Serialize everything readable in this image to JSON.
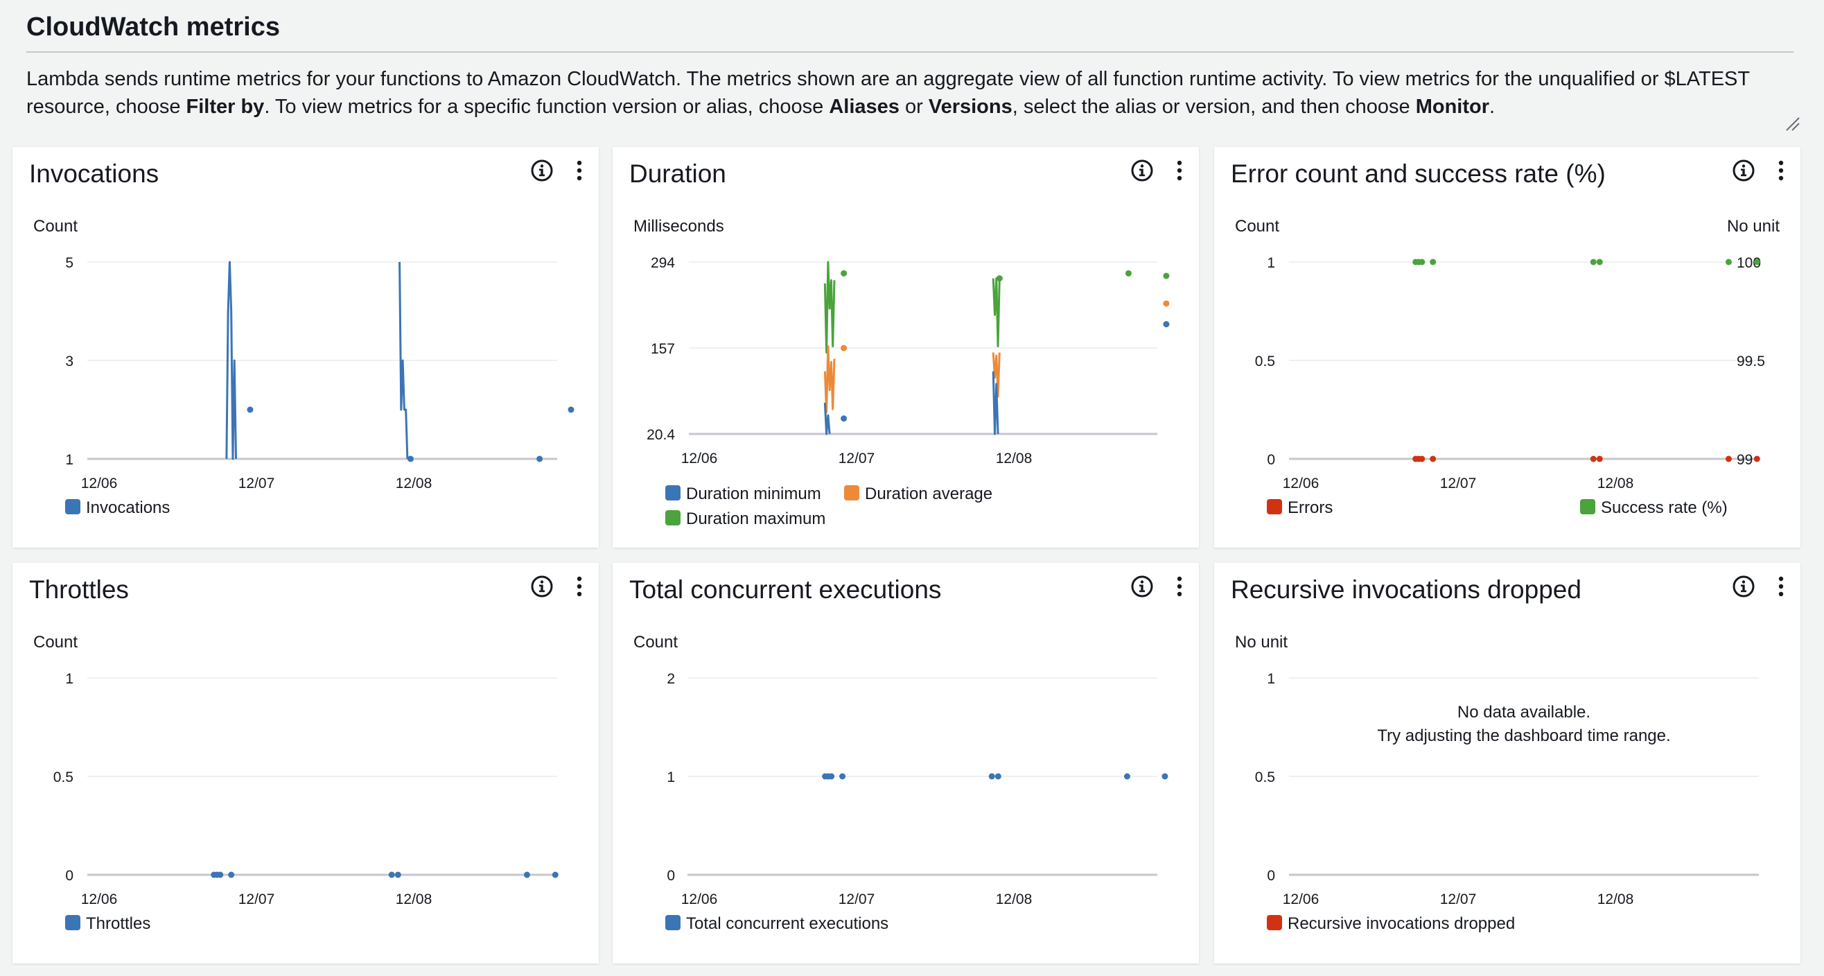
{
  "header": {
    "title": "CloudWatch metrics",
    "description": {
      "t1": "Lambda sends runtime metrics for your functions to Amazon CloudWatch. The metrics shown are an aggregate view of all function runtime activity. To view metrics for the unqualified or $LATEST resource, choose ",
      "b1": "Filter by",
      "t2": ". To view metrics for a specific function version or alias, choose ",
      "b2": "Aliases",
      "t3": " or ",
      "b3": "Versions",
      "t4": ", select the alias or version, and then choose ",
      "b4": "Monitor",
      "t5": "."
    }
  },
  "colors": {
    "blue": "#3a75b6",
    "orange": "#ed8a3a",
    "green": "#4aa33c",
    "red": "#d13212",
    "grid": "#e9ebed",
    "axis": "#c6c6cd"
  },
  "icons": {
    "info": "info-circle-icon",
    "menu": "vertical-ellipsis-icon",
    "resize": "resize-handle-icon"
  },
  "chart_data": [
    {
      "id": "invocations",
      "type": "line",
      "title": "Invocations",
      "ylabel": "Count",
      "x_ticks": [
        "12/06",
        "12/07",
        "12/08"
      ],
      "y_ticks": [
        "5",
        "3",
        "1"
      ],
      "ylim": [
        1,
        5
      ],
      "legend": [
        {
          "name": "Invocations",
          "color": "#3a75b6"
        }
      ],
      "series": [
        {
          "name": "Invocations",
          "color": "#3a75b6",
          "lines": [
            [
              [
                0.81,
                1
              ],
              [
                0.82,
                4
              ],
              [
                0.83,
                5
              ],
              [
                0.84,
                4
              ],
              [
                0.85,
                1
              ],
              [
                0.86,
                3
              ],
              [
                0.87,
                1
              ]
            ],
            [
              [
                1.91,
                5
              ],
              [
                1.92,
                2
              ],
              [
                1.93,
                3
              ],
              [
                1.94,
                2
              ],
              [
                1.95,
                2
              ],
              [
                1.96,
                1
              ]
            ]
          ],
          "points": [
            [
              0.96,
              2
            ],
            [
              1.98,
              1
            ],
            [
              2.8,
              1
            ],
            [
              3.0,
              2
            ]
          ]
        }
      ]
    },
    {
      "id": "duration",
      "type": "line",
      "title": "Duration",
      "ylabel": "Milliseconds",
      "x_ticks": [
        "12/06",
        "12/07",
        "12/08"
      ],
      "y_ticks": [
        "294",
        "157",
        "20.4"
      ],
      "ylim": [
        20.4,
        294
      ],
      "legend": [
        {
          "name": "Duration minimum",
          "color": "#3a75b6"
        },
        {
          "name": "Duration average",
          "color": "#ed8a3a"
        },
        {
          "name": "Duration maximum",
          "color": "#4aa33c"
        }
      ],
      "series": [
        {
          "name": "Duration maximum",
          "color": "#4aa33c",
          "lines": [
            [
              [
                0.79,
                260
              ],
              [
                0.8,
                150
              ],
              [
                0.81,
                294
              ],
              [
                0.82,
                220
              ],
              [
                0.83,
                265
              ],
              [
                0.84,
                160
              ],
              [
                0.85,
                265
              ]
            ],
            [
              [
                1.86,
                268
              ],
              [
                1.87,
                210
              ],
              [
                1.88,
                268
              ],
              [
                1.89,
                160
              ],
              [
                1.9,
                268
              ]
            ]
          ],
          "points": [
            [
              0.91,
              276
            ],
            [
              1.9,
              268
            ],
            [
              2.72,
              276
            ],
            [
              2.96,
              272
            ]
          ]
        },
        {
          "name": "Duration average",
          "color": "#ed8a3a",
          "lines": [
            [
              [
                0.79,
                120
              ],
              [
                0.8,
                55
              ],
              [
                0.81,
                160
              ],
              [
                0.82,
                90
              ],
              [
                0.83,
                135
              ],
              [
                0.84,
                60
              ],
              [
                0.85,
                140
              ]
            ],
            [
              [
                1.86,
                150
              ],
              [
                1.87,
                110
              ],
              [
                1.88,
                145
              ],
              [
                1.89,
                80
              ],
              [
                1.9,
                150
              ]
            ]
          ],
          "points": [
            [
              0.91,
              157
            ],
            [
              2.96,
              228
            ]
          ]
        },
        {
          "name": "Duration minimum",
          "color": "#3a75b6",
          "lines": [
            [
              [
                0.79,
                70
              ],
              [
                0.8,
                20.4
              ],
              [
                0.81,
                50
              ],
              [
                0.82,
                20.4
              ]
            ],
            [
              [
                1.86,
                120
              ],
              [
                1.87,
                20.4
              ],
              [
                1.88,
                100
              ],
              [
                1.89,
                20.4
              ]
            ]
          ],
          "points": [
            [
              0.91,
              45
            ],
            [
              2.96,
              195
            ]
          ]
        }
      ]
    },
    {
      "id": "errors",
      "type": "line",
      "title": "Error count and success rate (%)",
      "ylabel": "Count",
      "ylabel_right": "No unit",
      "x_ticks": [
        "12/06",
        "12/07",
        "12/08"
      ],
      "y_ticks": [
        "1",
        "0.5",
        "0"
      ],
      "y_ticks_right": [
        "100",
        "99.5",
        "99"
      ],
      "ylim": [
        0,
        1
      ],
      "ylim_right": [
        99,
        100
      ],
      "legend": [
        {
          "name": "Errors",
          "color": "#d13212"
        },
        {
          "name": "Success rate (%)",
          "color": "#4aa33c"
        }
      ],
      "series": [
        {
          "name": "Errors",
          "color": "#d13212",
          "lines": [],
          "points": [
            [
              0.73,
              0
            ],
            [
              0.75,
              0
            ],
            [
              0.77,
              0
            ],
            [
              0.84,
              0
            ],
            [
              1.86,
              0
            ],
            [
              1.9,
              0
            ],
            [
              2.72,
              0
            ],
            [
              2.9,
              0
            ]
          ]
        },
        {
          "name": "Success rate (%)",
          "color": "#4aa33c",
          "lines": [],
          "points": [
            [
              0.73,
              1
            ],
            [
              0.75,
              1
            ],
            [
              0.77,
              1
            ],
            [
              0.84,
              1
            ],
            [
              1.86,
              1
            ],
            [
              1.9,
              1
            ],
            [
              2.72,
              1
            ],
            [
              2.9,
              1
            ]
          ]
        }
      ]
    },
    {
      "id": "throttles",
      "type": "line",
      "title": "Throttles",
      "ylabel": "Count",
      "x_ticks": [
        "12/06",
        "12/07",
        "12/08"
      ],
      "y_ticks": [
        "1",
        "0.5",
        "0"
      ],
      "ylim": [
        0,
        1
      ],
      "legend": [
        {
          "name": "Throttles",
          "color": "#3a75b6"
        }
      ],
      "series": [
        {
          "name": "Throttles",
          "color": "#3a75b6",
          "lines": [],
          "points": [
            [
              0.73,
              0
            ],
            [
              0.75,
              0
            ],
            [
              0.77,
              0
            ],
            [
              0.84,
              0
            ],
            [
              1.86,
              0
            ],
            [
              1.9,
              0
            ],
            [
              2.72,
              0
            ],
            [
              2.9,
              0
            ]
          ]
        }
      ]
    },
    {
      "id": "concurrent",
      "type": "line",
      "title": "Total concurrent executions",
      "ylabel": "Count",
      "x_ticks": [
        "12/06",
        "12/07",
        "12/08"
      ],
      "y_ticks": [
        "2",
        "1",
        "0"
      ],
      "ylim": [
        0,
        2
      ],
      "legend": [
        {
          "name": "Total concurrent executions",
          "color": "#3a75b6"
        }
      ],
      "series": [
        {
          "name": "Total concurrent executions",
          "color": "#3a75b6",
          "lines": [],
          "points": [
            [
              0.8,
              1
            ],
            [
              0.82,
              1
            ],
            [
              0.84,
              1
            ],
            [
              0.91,
              1
            ],
            [
              1.86,
              1
            ],
            [
              1.9,
              1
            ],
            [
              2.72,
              1
            ],
            [
              2.96,
              1
            ]
          ]
        }
      ]
    },
    {
      "id": "recursive",
      "type": "line",
      "title": "Recursive invocations dropped",
      "ylabel": "No unit",
      "x_ticks": [
        "12/06",
        "12/07",
        "12/08"
      ],
      "y_ticks": [
        "1",
        "0.5",
        "0"
      ],
      "ylim": [
        0,
        1
      ],
      "no_data": [
        "No data available.",
        "Try adjusting the dashboard time range."
      ],
      "legend": [
        {
          "name": "Recursive invocations dropped",
          "color": "#d13212"
        }
      ],
      "series": []
    }
  ]
}
